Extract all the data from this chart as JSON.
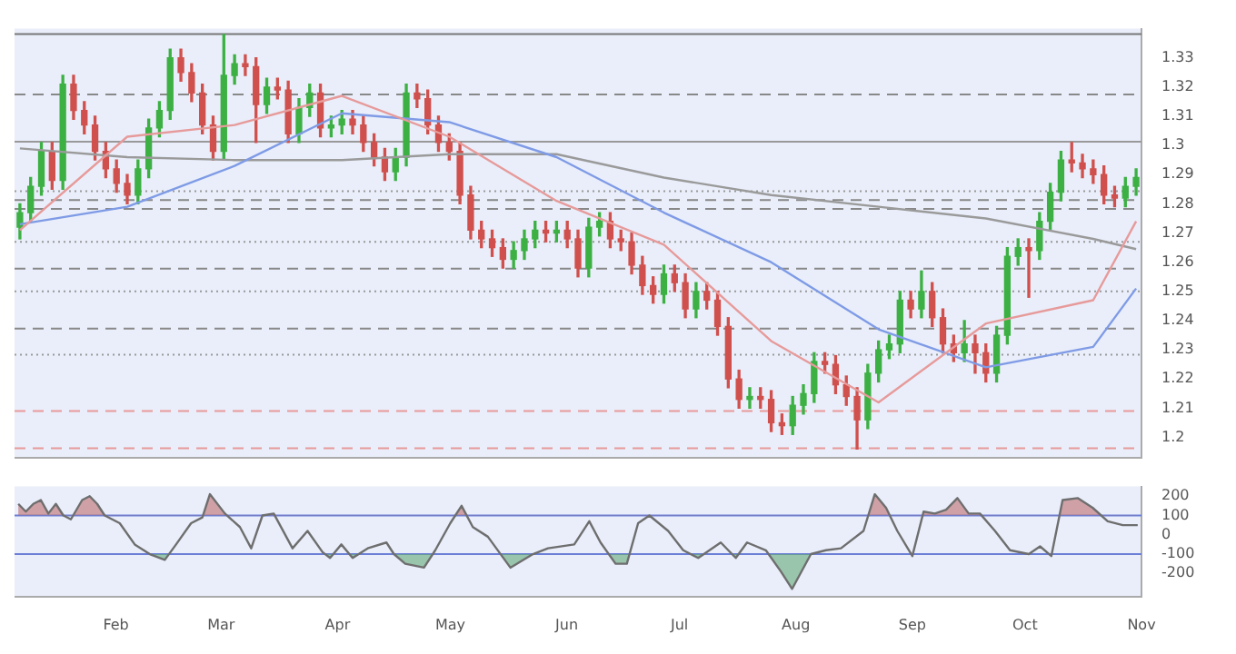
{
  "chart_data": [
    {
      "type": "candlestick",
      "categories": [
        null,
        null,
        null,
        null,
        null,
        null,
        null,
        null,
        null,
        null,
        null,
        null,
        null,
        null,
        null,
        null,
        null,
        null,
        null,
        null,
        null,
        null,
        null,
        null,
        null,
        null,
        null,
        null,
        null,
        null,
        null,
        null,
        null,
        null,
        null,
        null,
        null,
        null,
        null,
        null,
        null,
        null,
        null,
        null,
        null,
        null,
        null,
        null,
        null,
        null,
        null,
        null,
        null,
        null,
        null,
        null,
        null,
        null,
        null,
        null,
        null,
        null,
        null,
        null,
        null,
        null,
        null,
        null,
        null,
        null,
        null,
        null,
        null,
        null,
        null,
        null,
        null,
        null,
        null,
        null,
        null,
        null,
        null,
        null,
        null,
        null,
        null,
        null,
        null,
        null,
        null,
        null,
        null,
        null,
        null,
        null,
        null,
        null,
        null,
        null,
        null,
        null,
        null,
        null,
        null
      ],
      "ohlc": [
        [
          1.272,
          1.28,
          1.268,
          1.277
        ],
        [
          1.277,
          1.289,
          1.274,
          1.286
        ],
        [
          1.286,
          1.301,
          1.283,
          1.298
        ],
        [
          1.298,
          1.301,
          1.285,
          1.288
        ],
        [
          1.288,
          1.324,
          1.285,
          1.321
        ],
        [
          1.321,
          1.324,
          1.309,
          1.312
        ],
        [
          1.312,
          1.315,
          1.304,
          1.307
        ],
        [
          1.307,
          1.31,
          1.295,
          1.298
        ],
        [
          1.298,
          1.301,
          1.289,
          1.292
        ],
        [
          1.292,
          1.295,
          1.284,
          1.287
        ],
        [
          1.287,
          1.29,
          1.28,
          1.283
        ],
        [
          1.283,
          1.295,
          1.28,
          1.292
        ],
        [
          1.292,
          1.309,
          1.289,
          1.306
        ],
        [
          1.306,
          1.315,
          1.303,
          1.312
        ],
        [
          1.312,
          1.333,
          1.309,
          1.33
        ],
        [
          1.33,
          1.333,
          1.322,
          1.325
        ],
        [
          1.325,
          1.328,
          1.315,
          1.318
        ],
        [
          1.318,
          1.321,
          1.304,
          1.307
        ],
        [
          1.307,
          1.31,
          1.295,
          1.298
        ],
        [
          1.298,
          1.338,
          1.295,
          1.324
        ],
        [
          1.324,
          1.331,
          1.321,
          1.328
        ],
        [
          1.328,
          1.331,
          1.324,
          1.327
        ],
        [
          1.327,
          1.33,
          1.301,
          1.314
        ],
        [
          1.314,
          1.323,
          1.311,
          1.32
        ],
        [
          1.32,
          1.323,
          1.316,
          1.319
        ],
        [
          1.319,
          1.322,
          1.301,
          1.304
        ],
        [
          1.304,
          1.316,
          1.301,
          1.313
        ],
        [
          1.313,
          1.321,
          1.31,
          1.318
        ],
        [
          1.318,
          1.321,
          1.303,
          1.306
        ],
        [
          1.306,
          1.31,
          1.303,
          1.307
        ],
        [
          1.307,
          1.312,
          1.304,
          1.309
        ],
        [
          1.309,
          1.312,
          1.304,
          1.307
        ],
        [
          1.307,
          1.31,
          1.298,
          1.301
        ],
        [
          1.301,
          1.304,
          1.293,
          1.296
        ],
        [
          1.296,
          1.299,
          1.288,
          1.291
        ],
        [
          1.291,
          1.299,
          1.288,
          1.296
        ],
        [
          1.296,
          1.321,
          1.293,
          1.318
        ],
        [
          1.318,
          1.321,
          1.313,
          1.316
        ],
        [
          1.316,
          1.319,
          1.304,
          1.307
        ],
        [
          1.307,
          1.31,
          1.298,
          1.301
        ],
        [
          1.301,
          1.304,
          1.295,
          1.298
        ],
        [
          1.298,
          1.301,
          1.28,
          1.283
        ],
        [
          1.283,
          1.286,
          1.268,
          1.271
        ],
        [
          1.271,
          1.274,
          1.265,
          1.268
        ],
        [
          1.268,
          1.271,
          1.262,
          1.265
        ],
        [
          1.265,
          1.268,
          1.258,
          1.261
        ],
        [
          1.261,
          1.267,
          1.258,
          1.264
        ],
        [
          1.264,
          1.271,
          1.261,
          1.268
        ],
        [
          1.268,
          1.274,
          1.265,
          1.271
        ],
        [
          1.271,
          1.274,
          1.267,
          1.27
        ],
        [
          1.27,
          1.274,
          1.267,
          1.271
        ],
        [
          1.271,
          1.274,
          1.265,
          1.268
        ],
        [
          1.268,
          1.271,
          1.255,
          1.258
        ],
        [
          1.258,
          1.275,
          1.255,
          1.272
        ],
        [
          1.272,
          1.277,
          1.269,
          1.274
        ],
        [
          1.274,
          1.277,
          1.265,
          1.268
        ],
        [
          1.268,
          1.271,
          1.264,
          1.267
        ],
        [
          1.267,
          1.27,
          1.256,
          1.259
        ],
        [
          1.259,
          1.262,
          1.249,
          1.252
        ],
        [
          1.252,
          1.255,
          1.246,
          1.249
        ],
        [
          1.249,
          1.259,
          1.246,
          1.256
        ],
        [
          1.256,
          1.259,
          1.25,
          1.253
        ],
        [
          1.253,
          1.256,
          1.241,
          1.244
        ],
        [
          1.244,
          1.253,
          1.241,
          1.25
        ],
        [
          1.25,
          1.253,
          1.244,
          1.247
        ],
        [
          1.247,
          1.25,
          1.235,
          1.238
        ],
        [
          1.238,
          1.241,
          1.217,
          1.22
        ],
        [
          1.22,
          1.223,
          1.21,
          1.213
        ],
        [
          1.213,
          1.217,
          1.21,
          1.214
        ],
        [
          1.214,
          1.217,
          1.21,
          1.213
        ],
        [
          1.213,
          1.216,
          1.202,
          1.205
        ],
        [
          1.205,
          1.208,
          1.201,
          1.204
        ],
        [
          1.204,
          1.214,
          1.201,
          1.211
        ],
        [
          1.211,
          1.218,
          1.208,
          1.215
        ],
        [
          1.215,
          1.229,
          1.212,
          1.226
        ],
        [
          1.226,
          1.229,
          1.222,
          1.225
        ],
        [
          1.225,
          1.228,
          1.215,
          1.218
        ],
        [
          1.218,
          1.221,
          1.211,
          1.214
        ],
        [
          1.214,
          1.217,
          1.196,
          1.206
        ],
        [
          1.206,
          1.225,
          1.203,
          1.222
        ],
        [
          1.222,
          1.233,
          1.219,
          1.23
        ],
        [
          1.23,
          1.235,
          1.227,
          1.232
        ],
        [
          1.232,
          1.25,
          1.229,
          1.247
        ],
        [
          1.247,
          1.25,
          1.241,
          1.244
        ],
        [
          1.244,
          1.257,
          1.241,
          1.25
        ],
        [
          1.25,
          1.253,
          1.238,
          1.241
        ],
        [
          1.241,
          1.244,
          1.229,
          1.232
        ],
        [
          1.232,
          1.235,
          1.226,
          1.229
        ],
        [
          1.229,
          1.24,
          1.226,
          1.232
        ],
        [
          1.232,
          1.235,
          1.222,
          1.229
        ],
        [
          1.229,
          1.232,
          1.219,
          1.222
        ],
        [
          1.222,
          1.238,
          1.219,
          1.235
        ],
        [
          1.235,
          1.265,
          1.232,
          1.262
        ],
        [
          1.262,
          1.268,
          1.259,
          1.265
        ],
        [
          1.265,
          1.268,
          1.248,
          1.264
        ],
        [
          1.264,
          1.277,
          1.261,
          1.274
        ],
        [
          1.274,
          1.287,
          1.271,
          1.284
        ],
        [
          1.284,
          1.298,
          1.281,
          1.295
        ],
        [
          1.295,
          1.301,
          1.291,
          1.294
        ],
        [
          1.294,
          1.297,
          1.289,
          1.292
        ],
        [
          1.292,
          1.295,
          1.287,
          1.29
        ],
        [
          1.29,
          1.293,
          1.28,
          1.283
        ],
        [
          1.283,
          1.286,
          1.279,
          1.282
        ],
        [
          1.282,
          1.289,
          1.279,
          1.286
        ],
        [
          1.286,
          1.292,
          1.283,
          1.289
        ]
      ],
      "series": [
        {
          "type": "line",
          "color": "#e79a9a",
          "values": [
            1.271,
            null,
            null,
            null,
            null,
            null,
            null,
            null,
            null,
            null,
            1.303,
            null,
            null,
            null,
            null,
            null,
            null,
            null,
            null,
            null,
            1.307,
            null,
            null,
            null,
            null,
            null,
            null,
            null,
            null,
            null,
            1.317,
            null,
            null,
            null,
            null,
            null,
            null,
            null,
            null,
            null,
            1.303,
            null,
            null,
            null,
            null,
            null,
            null,
            null,
            null,
            null,
            1.281,
            null,
            null,
            null,
            null,
            null,
            null,
            null,
            null,
            null,
            1.266,
            null,
            null,
            null,
            null,
            null,
            null,
            null,
            null,
            null,
            1.233,
            null,
            null,
            null,
            null,
            null,
            null,
            null,
            null,
            null,
            1.212,
            null,
            null,
            null,
            null,
            null,
            null,
            null,
            null,
            null,
            1.239,
            null,
            null,
            null,
            null,
            null,
            null,
            null,
            null,
            null,
            1.247,
            null,
            null,
            null,
            1.274
          ]
        },
        {
          "type": "line",
          "color": "#7f9be6",
          "values": [
            1.273,
            null,
            null,
            null,
            null,
            null,
            null,
            null,
            null,
            null,
            1.279,
            null,
            null,
            null,
            null,
            null,
            null,
            null,
            null,
            null,
            1.293,
            null,
            null,
            null,
            null,
            null,
            null,
            null,
            null,
            null,
            1.311,
            null,
            null,
            null,
            null,
            null,
            null,
            null,
            null,
            null,
            1.308,
            null,
            null,
            null,
            null,
            null,
            null,
            null,
            null,
            null,
            1.296,
            null,
            null,
            null,
            null,
            null,
            null,
            null,
            null,
            null,
            1.277,
            null,
            null,
            null,
            null,
            null,
            null,
            null,
            null,
            null,
            1.26,
            null,
            null,
            null,
            null,
            null,
            null,
            null,
            null,
            null,
            1.237,
            null,
            null,
            null,
            null,
            null,
            null,
            null,
            null,
            null,
            1.224,
            null,
            null,
            null,
            null,
            null,
            null,
            null,
            null,
            null,
            1.231,
            null,
            null,
            null,
            1.251
          ]
        },
        {
          "type": "line",
          "color": "#9a9a9a",
          "values": [
            1.299,
            null,
            null,
            null,
            null,
            null,
            null,
            null,
            null,
            null,
            1.296,
            null,
            null,
            null,
            null,
            null,
            null,
            null,
            null,
            null,
            1.295,
            null,
            null,
            null,
            null,
            null,
            null,
            null,
            null,
            null,
            1.295,
            null,
            null,
            null,
            null,
            null,
            null,
            null,
            null,
            null,
            1.297,
            null,
            null,
            null,
            null,
            null,
            null,
            null,
            null,
            null,
            1.297,
            null,
            null,
            null,
            null,
            null,
            null,
            null,
            null,
            null,
            1.289,
            null,
            null,
            null,
            null,
            null,
            null,
            null,
            null,
            null,
            1.283,
            null,
            null,
            null,
            null,
            null,
            null,
            null,
            null,
            null,
            1.279,
            null,
            null,
            null,
            null,
            null,
            null,
            null,
            null,
            null,
            1.275,
            null,
            null,
            null,
            null,
            null,
            null,
            null,
            null,
            null,
            1.268,
            null,
            null,
            null,
            1.2645
          ]
        }
      ],
      "ylim": [
        1.193,
        1.34
      ],
      "yticks": [
        1.2,
        1.21,
        1.22,
        1.23,
        1.24,
        1.25,
        1.26,
        1.27,
        1.28,
        1.29,
        1.3,
        1.31,
        1.32,
        1.33
      ],
      "ref_lines": [
        {
          "axis": "y",
          "value": 1.3382,
          "color": "#777777",
          "line_style": "solid"
        },
        {
          "axis": "y",
          "value": 1.3175,
          "color": "#888888",
          "line_style": "dashed"
        },
        {
          "axis": "y",
          "value": 1.3013,
          "color": "#999999",
          "line_style": "solid"
        },
        {
          "axis": "y",
          "value": 1.2843,
          "color": "#999999",
          "line_style": "dotted"
        },
        {
          "axis": "y",
          "value": 1.2813,
          "color": "#888888",
          "line_style": "dashed"
        },
        {
          "axis": "y",
          "value": 1.2783,
          "color": "#888888",
          "line_style": "dashed"
        },
        {
          "axis": "y",
          "value": 1.267,
          "color": "#999999",
          "line_style": "dotted"
        },
        {
          "axis": "y",
          "value": 1.2578,
          "color": "#888888",
          "line_style": "dashed"
        },
        {
          "axis": "y",
          "value": 1.25,
          "color": "#999999",
          "line_style": "dotted"
        },
        {
          "axis": "y",
          "value": 1.2373,
          "color": "#888888",
          "line_style": "dashed"
        },
        {
          "axis": "y",
          "value": 1.2283,
          "color": "#999999",
          "line_style": "dotted"
        },
        {
          "axis": "y",
          "value": 1.209,
          "color": "#e89a9a",
          "line_style": "dashed"
        },
        {
          "axis": "y",
          "value": 1.1963,
          "color": "#e89a9a",
          "line_style": "dashed"
        }
      ],
      "grid": false,
      "legend": false,
      "tick_labels": "y",
      "marker": "none"
    },
    {
      "type": "line",
      "x": [
        "--01-06",
        "--01-08",
        "--01-10",
        "--01-12",
        "--01-14",
        "--01-16",
        "--01-18",
        "--01-20",
        "--01-23",
        "--01-25",
        "--01-27",
        "--01-29",
        "--02-02",
        "--02-06",
        "--02-10",
        "--02-14",
        "--02-17",
        "--02-21",
        "--02-24",
        "--02-26",
        "--03-02",
        "--03-06",
        "--03-09",
        "--03-12",
        "--03-15",
        "--03-20",
        "--03-24",
        "--03-28",
        "--03-30",
        "--04-02",
        "--04-05",
        "--04-09",
        "--04-14",
        "--04-16",
        "--04-19",
        "--04-24",
        "--04-27",
        "--05-01",
        "--05-04",
        "--05-07",
        "--05-11",
        "--05-17",
        "--05-23",
        "--05-27",
        "--06-03",
        "--06-07",
        "--06-10",
        "--06-14",
        "--06-17",
        "--06-20",
        "--06-23",
        "--06-28",
        "--07-02",
        "--07-06",
        "--07-12",
        "--07-16",
        "--07-19",
        "--07-24",
        "--07-28",
        "--07-31",
        "--08-05",
        "--08-09",
        "--08-13",
        "--08-19",
        "--08-22",
        "--08-25",
        "--08-28",
        "--09-01",
        "--09-04",
        "--09-07",
        "--09-10",
        "--09-13",
        "--09-16",
        "--09-19",
        "--09-23",
        "--09-27",
        "--10-02",
        "--10-05",
        "--10-08",
        "--10-11",
        "--10-15",
        "--10-19",
        "--10-23",
        "--10-27",
        "--10-31"
      ],
      "series": [
        {
          "color": "#6e6e6e",
          "values": [
            160,
            120,
            160,
            180,
            110,
            160,
            100,
            80,
            180,
            200,
            160,
            100,
            60,
            -50,
            -100,
            -130,
            -50,
            60,
            90,
            210,
            110,
            40,
            -70,
            100,
            110,
            -70,
            20,
            -90,
            -120,
            -50,
            -120,
            -70,
            -40,
            -100,
            -150,
            -170,
            -80,
            60,
            150,
            40,
            -10,
            -170,
            -100,
            -70,
            -50,
            70,
            -40,
            -150,
            -150,
            60,
            100,
            20,
            -80,
            -120,
            -40,
            -120,
            -40,
            -80,
            -190,
            -280,
            -100,
            -80,
            -70,
            20,
            210,
            140,
            20,
            -110,
            120,
            110,
            130,
            190,
            110,
            110,
            20,
            -80,
            -100,
            -60,
            -110,
            180,
            190,
            140,
            70,
            50,
            50
          ]
        }
      ],
      "xlim": [
        "--01-05",
        "--11-01"
      ],
      "xticks": [
        {
          "value": "--02-01",
          "label": "Feb"
        },
        {
          "value": "--03-01",
          "label": "Mar"
        },
        {
          "value": "--04-01",
          "label": "Apr"
        },
        {
          "value": "--05-01",
          "label": "May"
        },
        {
          "value": "--06-01",
          "label": "Jun"
        },
        {
          "value": "--07-01",
          "label": "Jul"
        },
        {
          "value": "--08-01",
          "label": "Aug"
        },
        {
          "value": "--09-01",
          "label": "Sep"
        },
        {
          "value": "--10-01",
          "label": "Oct"
        },
        {
          "value": "--11-01",
          "label": "Nov"
        }
      ],
      "ylim": [
        -320,
        250
      ],
      "yticks": [
        -200,
        -100,
        0,
        100,
        200
      ],
      "ref_lines": [
        {
          "axis": "y",
          "value": 100,
          "color": "#6b7fd7",
          "line_style": "solid"
        },
        {
          "axis": "y",
          "value": -100,
          "color": "#6b7fd7",
          "line_style": "solid"
        }
      ],
      "grid": false,
      "legend": false,
      "marker": "none"
    }
  ]
}
